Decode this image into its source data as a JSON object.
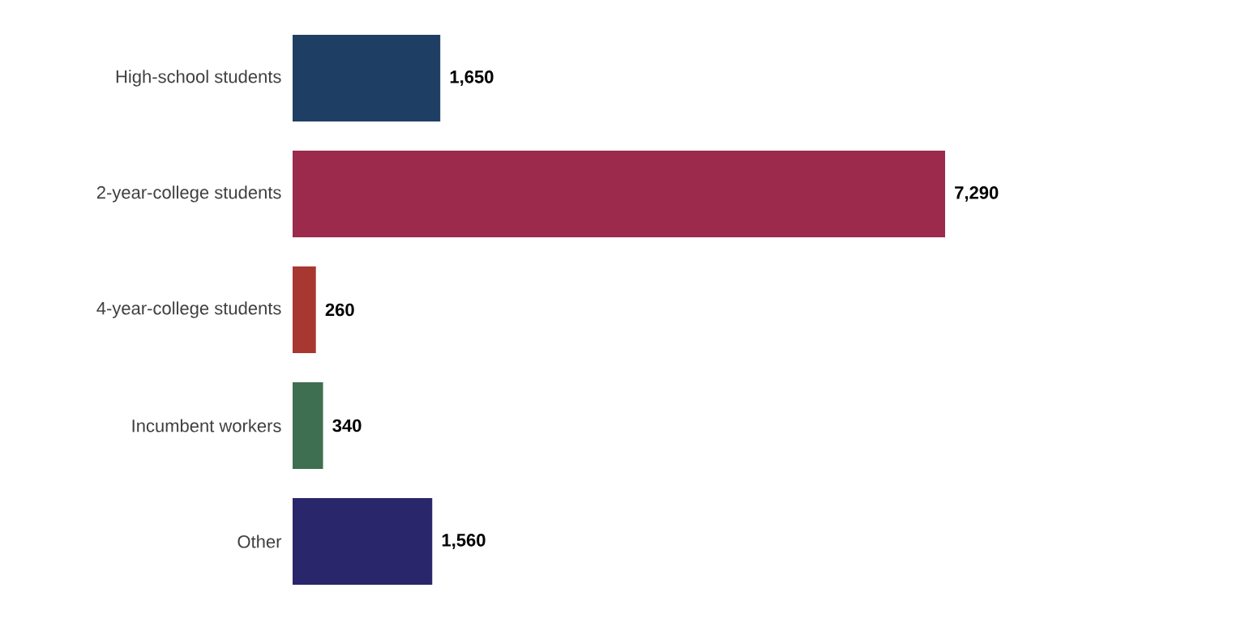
{
  "chart_data": {
    "type": "bar",
    "orientation": "horizontal",
    "categories": [
      "High-school students",
      "2-year-college students",
      "4-year-college students",
      "Incumbent workers",
      "Other"
    ],
    "values": [
      1650,
      7290,
      260,
      340,
      1560
    ],
    "value_labels": [
      "1,650",
      "7,290",
      "260",
      "340",
      "1,560"
    ],
    "colors": [
      "#1f3e63",
      "#9b2a4d",
      "#a83732",
      "#3e6f50",
      "#2a266b"
    ]
  }
}
